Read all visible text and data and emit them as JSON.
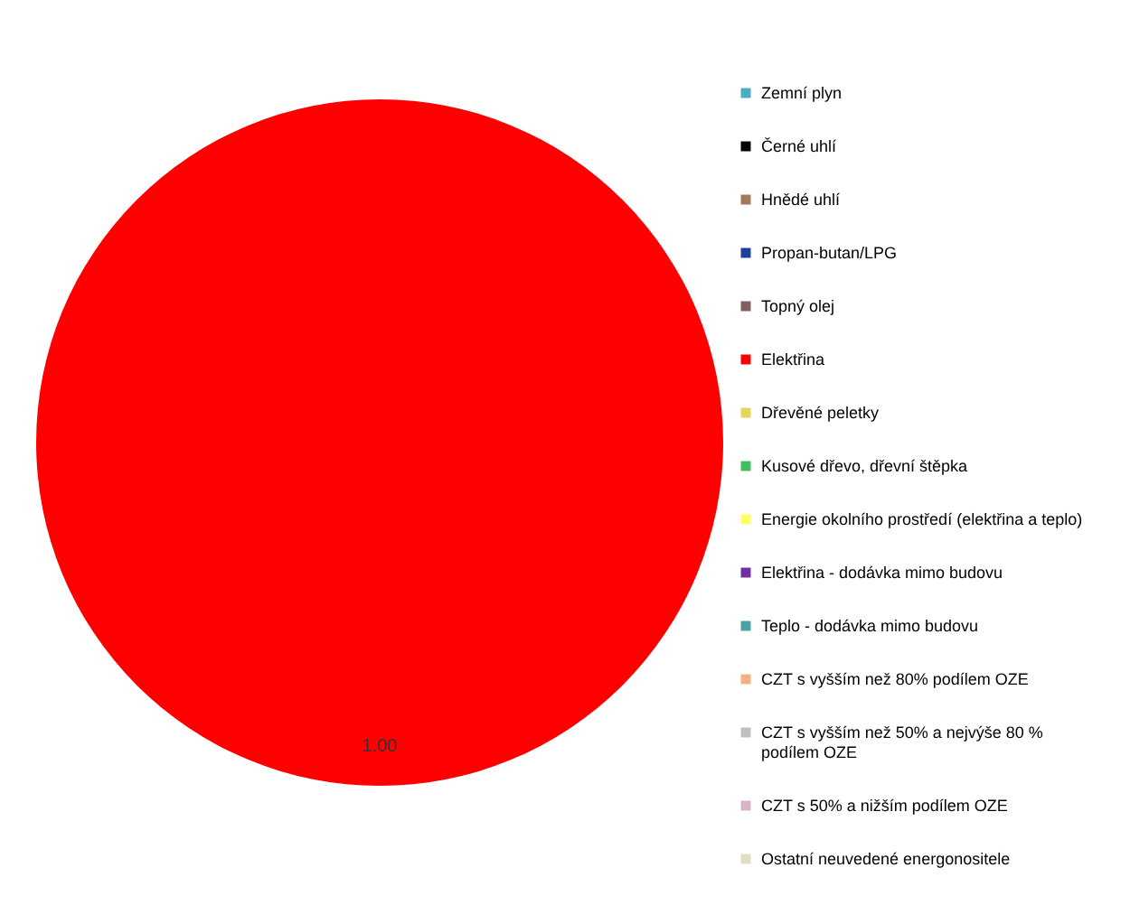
{
  "chart_data": {
    "type": "pie",
    "categories": [
      "Zemní plyn",
      "Černé uhlí",
      "Hnědé uhlí",
      "Propan-butan/LPG",
      "Topný olej",
      "Elektřina",
      "Dřevěné peletky",
      "Kusové dřevo, dřevní štěpka",
      "Energie okolního prostředí (elektřina a teplo)",
      "Elektřina - dodávka mimo budovu",
      "Teplo - dodávka mimo budovu",
      "CZT s vyšším než 80% podílem OZE",
      "CZT s vyšším než 50% a nejvýše 80 % podílem OZE",
      "CZT s 50% a nižším podílem OZE",
      "Ostatní neuvedené energonositele"
    ],
    "values": [
      0,
      0,
      0,
      0,
      0,
      1.0,
      0,
      0,
      0,
      0,
      0,
      0,
      0,
      0,
      0
    ],
    "value_labels": [
      null,
      null,
      null,
      null,
      null,
      "1.00",
      null,
      null,
      null,
      null,
      null,
      null,
      null,
      null,
      null
    ],
    "colors": [
      "#4bacc6",
      "#000000",
      "#a5785a",
      "#1f3f9f",
      "#7f5f5f",
      "#ff0000",
      "#e6d55a",
      "#3fbf5f",
      "#ffff66",
      "#7030a0",
      "#4aa3a3",
      "#f4b183",
      "#bfbfbf",
      "#d9b3c6",
      "#e0e0c0"
    ],
    "legend": "right"
  }
}
